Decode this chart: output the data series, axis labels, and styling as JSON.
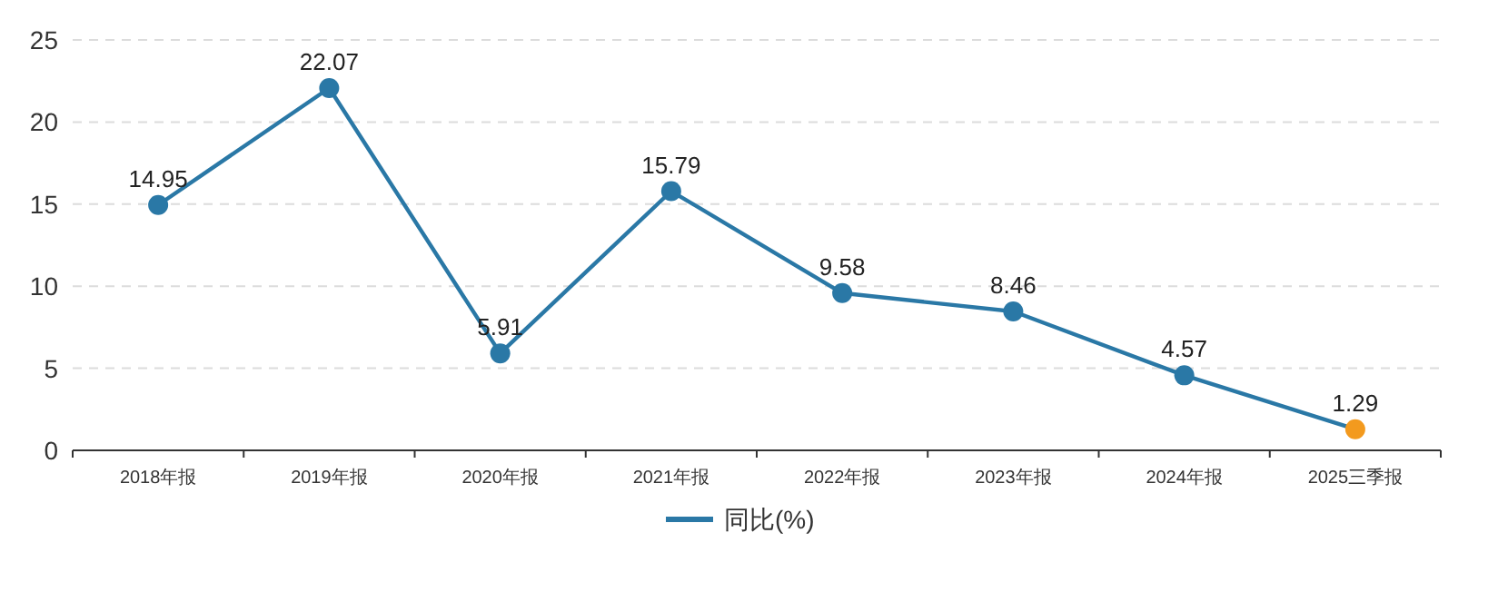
{
  "chart_data": {
    "type": "line",
    "categories": [
      "2018年报",
      "2019年报",
      "2020年报",
      "2021年报",
      "2022年报",
      "2023年报",
      "2024年报",
      "2025三季报"
    ],
    "series": [
      {
        "name": "同比(%)",
        "color": "#2a78a6",
        "colors": [
          "#2a78a6",
          "#2a78a6",
          "#2a78a6",
          "#2a78a6",
          "#2a78a6",
          "#2a78a6",
          "#2a78a6",
          "#f39a1e"
        ],
        "values": [
          14.95,
          22.07,
          5.91,
          15.79,
          9.58,
          8.46,
          4.57,
          1.29
        ]
      }
    ],
    "ylim": [
      0,
      25
    ],
    "yticks": [
      0,
      5,
      10,
      15,
      20,
      25
    ],
    "grid": "y",
    "legend": "bottom",
    "marker": "circle",
    "line_style": "solid",
    "data_labels": true
  }
}
